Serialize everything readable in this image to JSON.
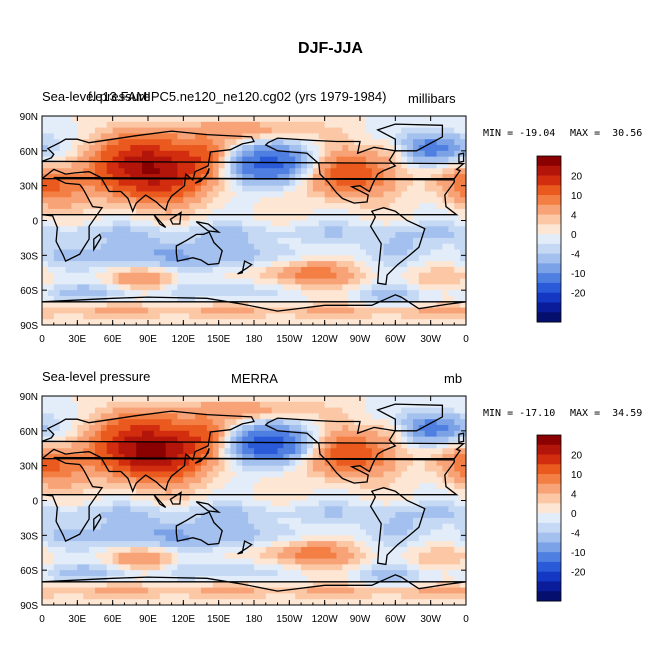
{
  "title": "DJF-JJA",
  "colorbar": {
    "labels": [
      "20",
      "10",
      "4",
      "0",
      "-4",
      "-10",
      "-20"
    ],
    "colors": [
      "#8b0000",
      "#b3150a",
      "#d22d0f",
      "#ea5a1e",
      "#f47f45",
      "#f8a377",
      "#fbc7a5",
      "#fde6d3",
      "#e3edfa",
      "#c5d9f4",
      "#a3c0ee",
      "#7ba2e6",
      "#4f7fe0",
      "#2a5ad8",
      "#1437c4",
      "#0a1c99",
      "#05106e"
    ]
  },
  "chart_data": [
    {
      "type": "heatmap",
      "title_left": "Sea-level pressure",
      "title_center": "f.e13.FAMIPC5.ne120_ne120.cg02 (yrs 1979-1984)",
      "units": "millibars",
      "min_label": "MIN = -19.04",
      "max_label": "MAX =  30.56",
      "min": -19.04,
      "max": 30.56,
      "x_ticks": [
        "0",
        "30E",
        "60E",
        "90E",
        "120E",
        "150E",
        "180",
        "150W",
        "120W",
        "90W",
        "60W",
        "30W",
        "0"
      ],
      "y_ticks": [
        "90N",
        "60N",
        "30N",
        "0",
        "30S",
        "60S",
        "90S"
      ]
    },
    {
      "type": "heatmap",
      "title_left": "Sea-level pressure",
      "title_center": "MERRA",
      "units": "mb",
      "min_label": "MIN = -17.10",
      "max_label": "MAX =  34.59",
      "min": -17.1,
      "max": 34.59,
      "x_ticks": [
        "0",
        "30E",
        "60E",
        "90E",
        "120E",
        "150E",
        "180",
        "150W",
        "120W",
        "90W",
        "60W",
        "30W",
        "0"
      ],
      "y_ticks": [
        "90N",
        "60N",
        "30N",
        "0",
        "30S",
        "60S",
        "90S"
      ]
    }
  ]
}
